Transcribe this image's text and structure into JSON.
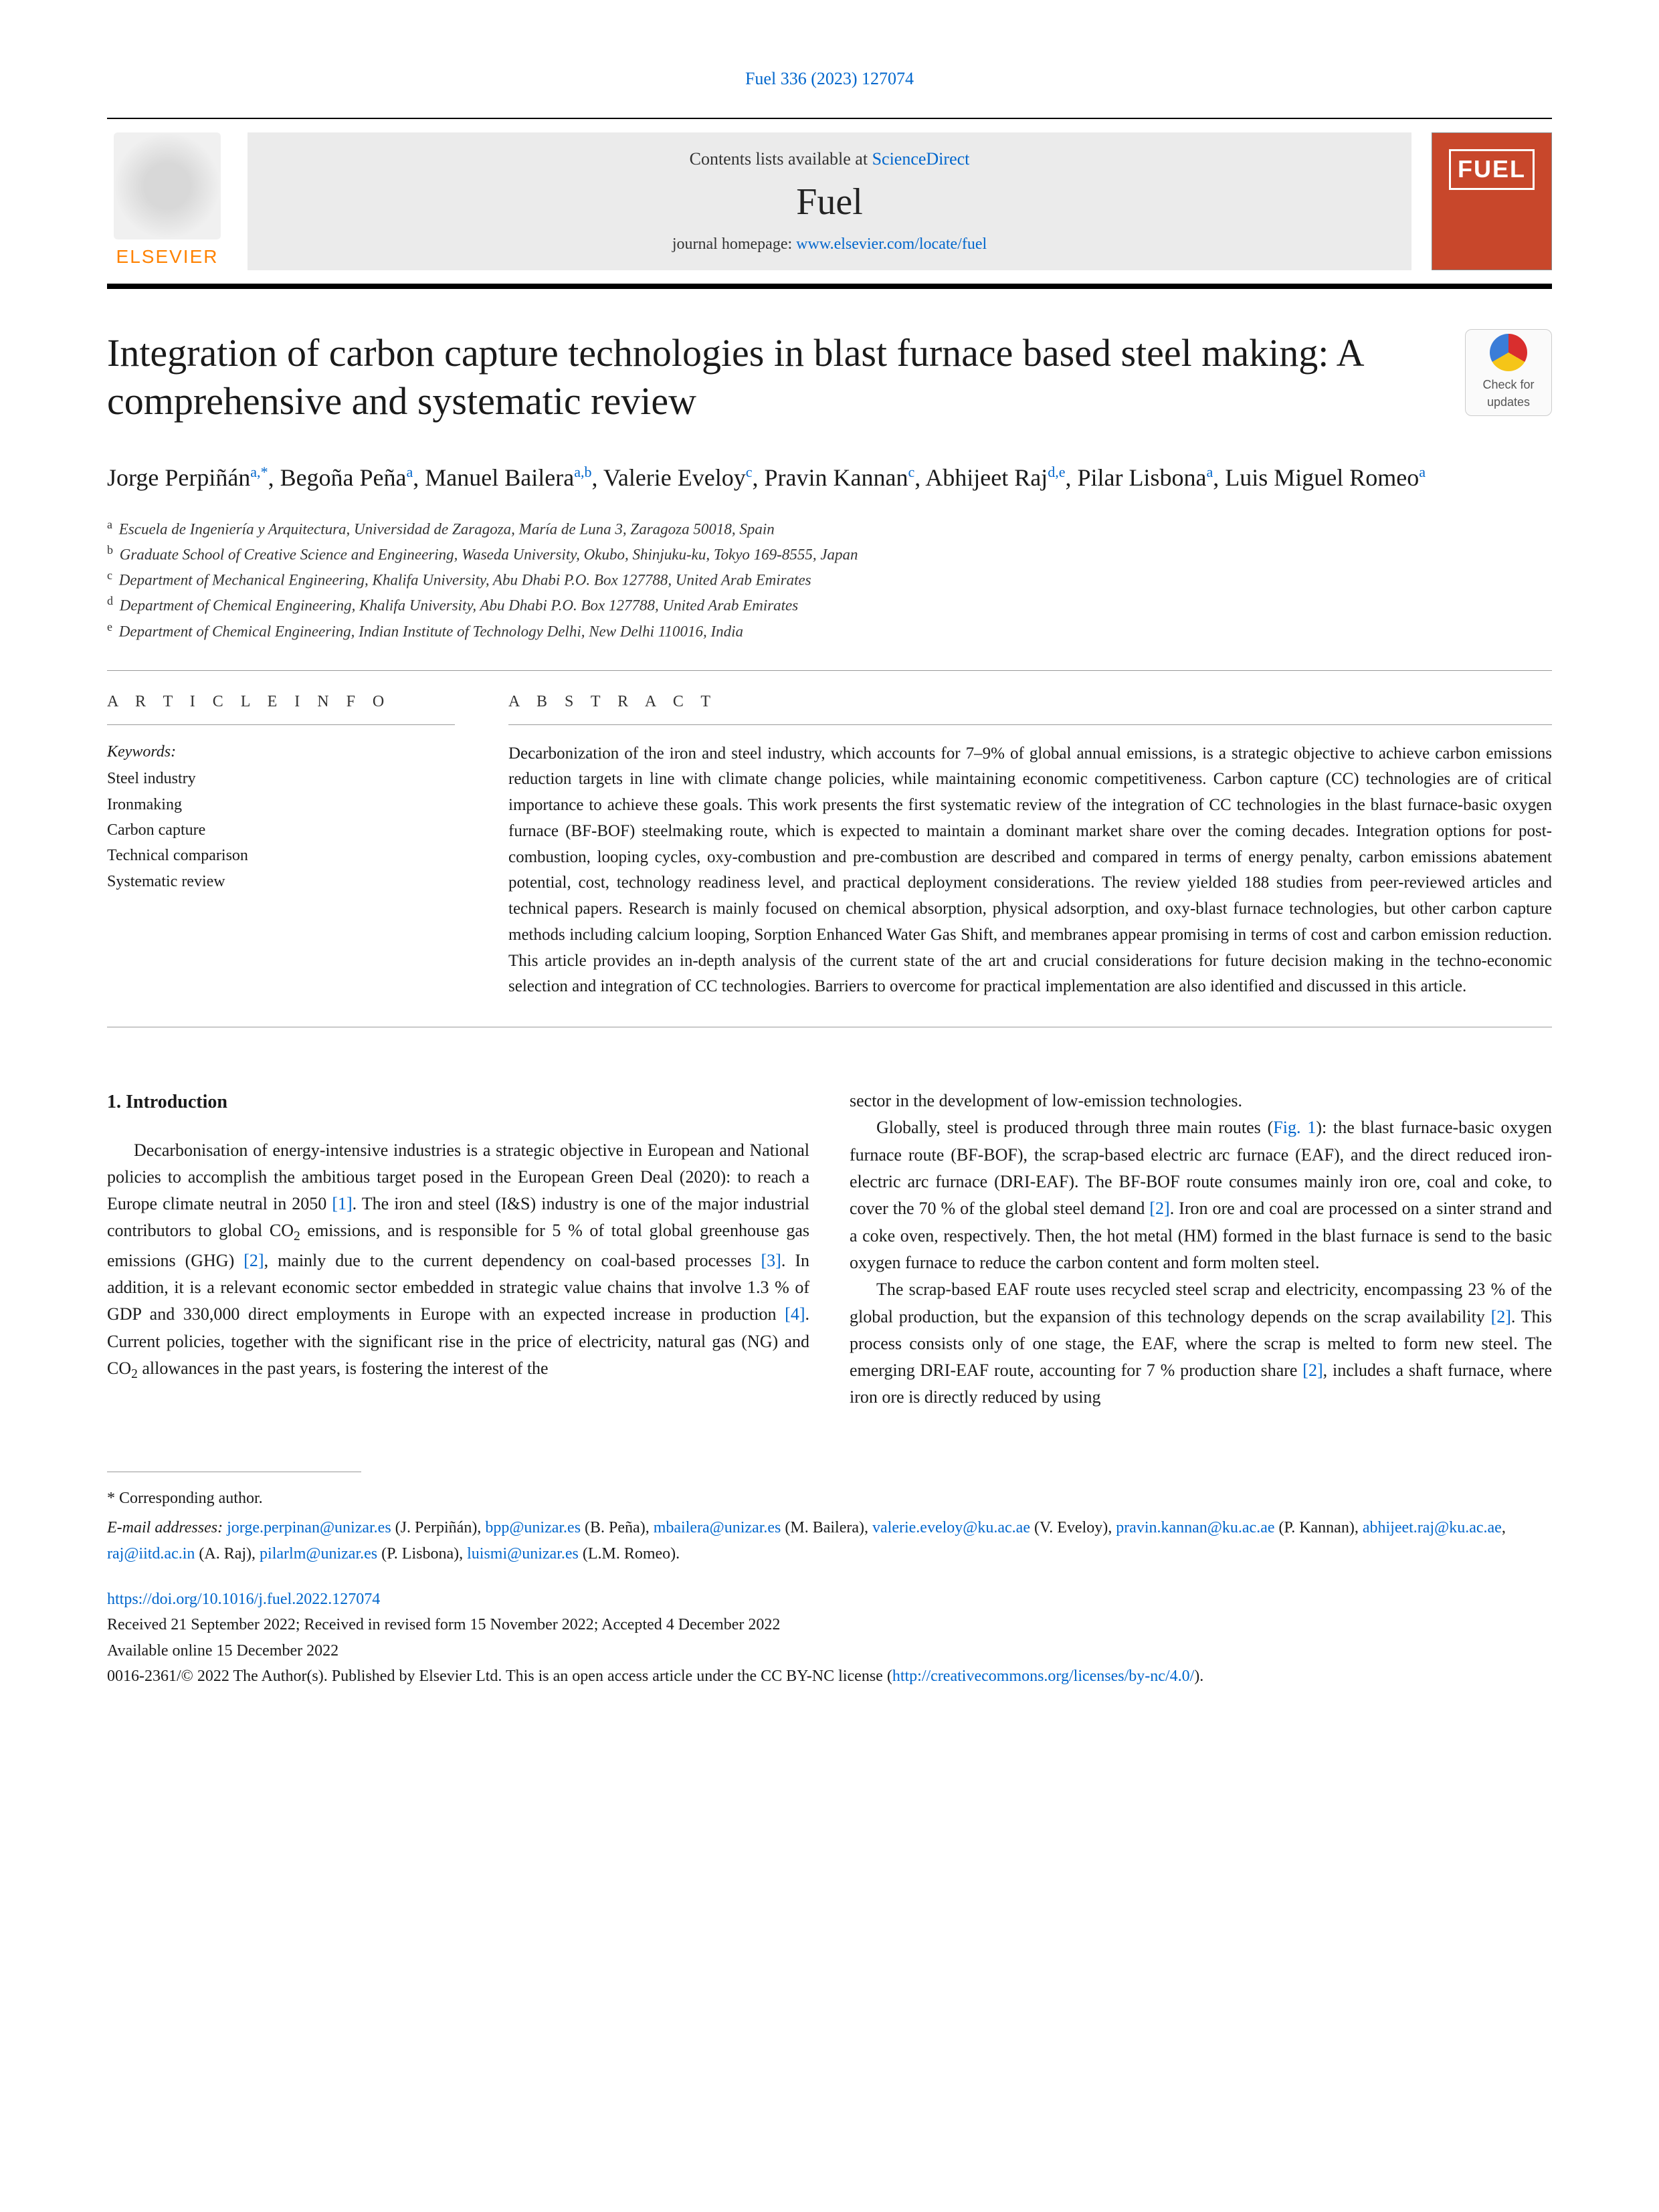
{
  "journal_ref": "Fuel 336 (2023) 127074",
  "masthead": {
    "publisher_name": "ELSEVIER",
    "contents_prefix": "Contents lists available at ",
    "contents_link": "ScienceDirect",
    "journal_title": "Fuel",
    "homepage_prefix": "journal homepage: ",
    "homepage_link": "www.elsevier.com/locate/fuel",
    "cover_title": "FUEL"
  },
  "check_updates": {
    "line1": "Check for",
    "line2": "updates"
  },
  "title": "Integration of carbon capture technologies in blast furnace based steel making: A comprehensive and systematic review",
  "authors": [
    {
      "name": "Jorge Perpiñán",
      "affs": "a,",
      "star": "*"
    },
    {
      "name": "Begoña Peña",
      "affs": "a"
    },
    {
      "name": "Manuel Bailera",
      "affs": "a,b"
    },
    {
      "name": "Valerie Eveloy",
      "affs": "c"
    },
    {
      "name": "Pravin Kannan",
      "affs": "c"
    },
    {
      "name": "Abhijeet Raj",
      "affs": "d,e"
    },
    {
      "name": "Pilar Lisbona",
      "affs": "a"
    },
    {
      "name": "Luis Miguel Romeo",
      "affs": "a"
    }
  ],
  "affiliations": [
    {
      "key": "a",
      "text": "Escuela de Ingeniería y Arquitectura, Universidad de Zaragoza, María de Luna 3, Zaragoza 50018, Spain"
    },
    {
      "key": "b",
      "text": "Graduate School of Creative Science and Engineering, Waseda University, Okubo, Shinjuku-ku, Tokyo 169-8555, Japan"
    },
    {
      "key": "c",
      "text": "Department of Mechanical Engineering, Khalifa University, Abu Dhabi P.O. Box 127788, United Arab Emirates"
    },
    {
      "key": "d",
      "text": "Department of Chemical Engineering, Khalifa University, Abu Dhabi P.O. Box 127788, United Arab Emirates"
    },
    {
      "key": "e",
      "text": "Department of Chemical Engineering, Indian Institute of Technology Delhi, New Delhi 110016, India"
    }
  ],
  "article_info": {
    "label": "A R T I C L E  I N F O",
    "keywords_label": "Keywords:",
    "keywords": [
      "Steel industry",
      "Ironmaking",
      "Carbon capture",
      "Technical comparison",
      "Systematic review"
    ]
  },
  "abstract": {
    "label": "A B S T R A C T",
    "text": "Decarbonization of the iron and steel industry, which accounts for 7–9% of global annual emissions, is a strategic objective to achieve carbon emissions reduction targets in line with climate change policies, while maintaining economic competitiveness. Carbon capture (CC) technologies are of critical importance to achieve these goals. This work presents the first systematic review of the integration of CC technologies in the blast furnace-basic oxygen furnace (BF-BOF) steelmaking route, which is expected to maintain a dominant market share over the coming decades. Integration options for post-combustion, looping cycles, oxy-combustion and pre-combustion are described and compared in terms of energy penalty, carbon emissions abatement potential, cost, technology readiness level, and practical deployment considerations. The review yielded 188 studies from peer-reviewed articles and technical papers. Research is mainly focused on chemical absorption, physical adsorption, and oxy-blast furnace technologies, but other carbon capture methods including calcium looping, Sorption Enhanced Water Gas Shift, and membranes appear promising in terms of cost and carbon emission reduction. This article provides an in-depth analysis of the current state of the art and crucial considerations for future decision making in the techno-economic selection and integration of CC technologies. Barriers to overcome for practical implementation are also identified and discussed in this article."
  },
  "introduction": {
    "heading": "1. Introduction",
    "col1_p1_a": "Decarbonisation of energy-intensive industries is a strategic objective in European and National policies to accomplish the ambitious target posed in the European Green Deal (2020): to reach a Europe climate neutral in 2050 ",
    "ref1": "[1]",
    "col1_p1_b": ". The iron and steel (I&S) industry is one of the major industrial contributors to global CO",
    "col1_p1_c": " emissions, and is responsible for 5 % of total global greenhouse gas emissions (GHG) ",
    "ref2": "[2]",
    "col1_p1_d": ", mainly due to the current dependency on coal-based processes ",
    "ref3": "[3]",
    "col1_p1_e": ". In addition, it is a relevant economic sector embedded in strategic value chains that involve 1.3 % of GDP and 330,000 direct employments in Europe with an expected increase in production ",
    "ref4": "[4]",
    "col1_p1_f": ". Current policies, together with the significant rise in the price of electricity, natural gas (NG) and CO",
    "col1_p1_g": " allowances in the past years, is fostering the interest of the",
    "col2_p1": "sector in the development of low-emission technologies.",
    "col2_p2_a": "Globally, steel is produced through three main routes (",
    "fig1": "Fig. 1",
    "col2_p2_b": "): the blast furnace-basic oxygen furnace route (BF-BOF), the scrap-based electric arc furnace (EAF), and the direct reduced iron-electric arc furnace (DRI-EAF). The BF-BOF route consumes mainly iron ore, coal and coke, to cover the 70 % of the global steel demand ",
    "col2_p2_c": ". Iron ore and coal are processed on a sinter strand and a coke oven, respectively. Then, the hot metal (HM) formed in the blast furnace is send to the basic oxygen furnace to reduce the carbon content and form molten steel.",
    "col2_p3_a": "The scrap-based EAF route uses recycled steel scrap and electricity, encompassing 23 % of the global production, but the expansion of this technology depends on the scrap availability ",
    "col2_p3_b": ". This process consists only of one stage, the EAF, where the scrap is melted to form new steel. The emerging DRI-EAF route, accounting for 7 % production share ",
    "col2_p3_c": ", includes a shaft furnace, where iron ore is directly reduced by using"
  },
  "footnote": {
    "corr": "* Corresponding author.",
    "email_label": "E-mail addresses: ",
    "emails": [
      {
        "addr": "jorge.perpinan@unizar.es",
        "who": " (J. Perpiñán), "
      },
      {
        "addr": "bpp@unizar.es",
        "who": " (B. Peña), "
      },
      {
        "addr": "mbailera@unizar.es",
        "who": " (M. Bailera), "
      },
      {
        "addr": "valerie.eveloy@ku.ac.ae",
        "who": " (V. Eveloy), "
      },
      {
        "addr": "pravin.kannan@ku.ac.ae",
        "who": " (P. Kannan), "
      },
      {
        "addr": "abhijeet.raj@ku.ac.ae",
        "who": ", "
      },
      {
        "addr": "raj@iitd.ac.in",
        "who": " (A. Raj), "
      },
      {
        "addr": "pilarlm@unizar.es",
        "who": " (P. Lisbona), "
      },
      {
        "addr": "luismi@unizar.es",
        "who": " (L.M. Romeo)."
      }
    ]
  },
  "doi": {
    "link": "https://doi.org/10.1016/j.fuel.2022.127074",
    "received": "Received 21 September 2022; Received in revised form 15 November 2022; Accepted 4 December 2022",
    "available": "Available online 15 December 2022",
    "copyright_a": "0016-2361/© 2022 The Author(s). Published by Elsevier Ltd. This is an open access article under the CC BY-NC license (",
    "cc_link": "http://creativecommons.org/licenses/by-nc/4.0/",
    "copyright_b": ")."
  },
  "colors": {
    "link": "#0066cc",
    "publisher_orange": "#ff8200",
    "cover_bg": "#c8472b",
    "text": "#1a1a1a",
    "rule": "#999999"
  }
}
